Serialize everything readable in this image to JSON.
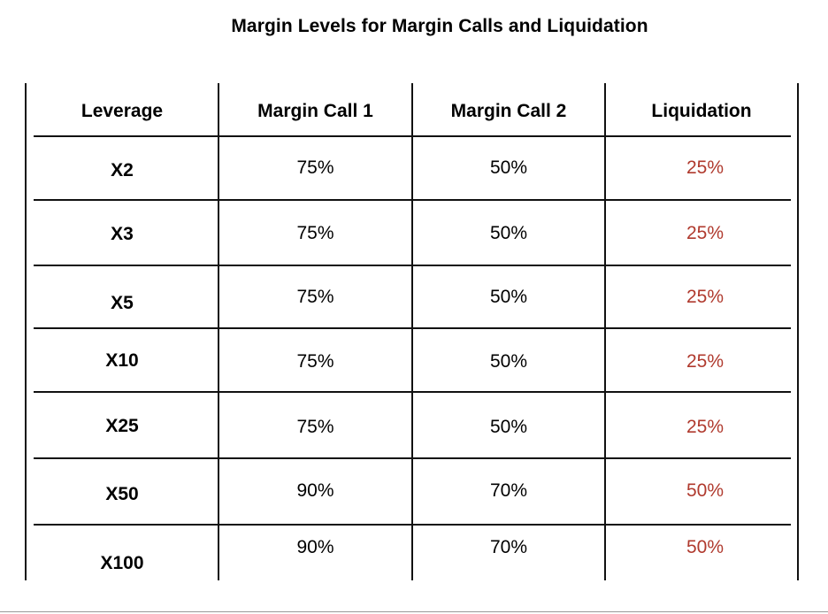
{
  "title": "Margin Levels for Margin Calls and Liquidation",
  "columns": [
    "Leverage",
    "Margin Call 1",
    "Margin Call 2",
    "Liquidation"
  ],
  "rows": [
    {
      "leverage": "X2",
      "margin_call_1": "75%",
      "margin_call_2": "50%",
      "liquidation": "25%"
    },
    {
      "leverage": "X3",
      "margin_call_1": "75%",
      "margin_call_2": "50%",
      "liquidation": "25%"
    },
    {
      "leverage": "X5",
      "margin_call_1": "75%",
      "margin_call_2": "50%",
      "liquidation": "25%"
    },
    {
      "leverage": "X10",
      "margin_call_1": "75%",
      "margin_call_2": "50%",
      "liquidation": "25%"
    },
    {
      "leverage": "X25",
      "margin_call_1": "75%",
      "margin_call_2": "50%",
      "liquidation": "25%"
    },
    {
      "leverage": "X50",
      "margin_call_1": "90%",
      "margin_call_2": "70%",
      "liquidation": "50%"
    },
    {
      "leverage": "X100",
      "margin_call_1": "90%",
      "margin_call_2": "70%",
      "liquidation": "50%"
    }
  ],
  "colors": {
    "text": "#000000",
    "liquidation": "#b03a2e",
    "rule": "#111111"
  }
}
